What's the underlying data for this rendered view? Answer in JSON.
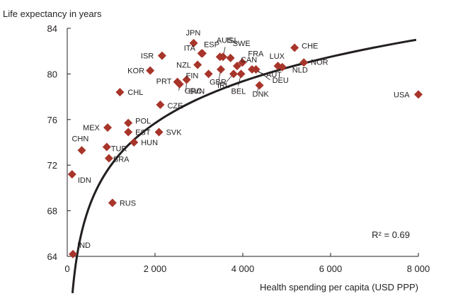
{
  "chart_data": {
    "type": "scatter",
    "title": "",
    "ylabel": "Life expectancy in years",
    "xlabel": "Health spending per capita (USD PPP)",
    "xlim": [
      0,
      8000
    ],
    "ylim": [
      64,
      84
    ],
    "xticks": [
      0,
      2000,
      4000,
      6000,
      8000
    ],
    "xtick_labels": [
      "0",
      "2 000",
      "4 000",
      "6 000",
      "8 000"
    ],
    "yticks": [
      64,
      68,
      72,
      76,
      80,
      84
    ],
    "ytick_labels": [
      "64",
      "68",
      "72",
      "76",
      "80",
      "84"
    ],
    "grid": false,
    "colors": {
      "marker": "#a8352a",
      "trend": "#231f20",
      "axis": "#231f20",
      "leader": "#231f20"
    },
    "annotation": "R² = 0.69",
    "trendline": {
      "type": "logarithmic",
      "a": 35.42,
      "b": 5.297,
      "x_start": 120,
      "x_end": 7950
    },
    "points": [
      {
        "label": "IND",
        "x": 130,
        "y": 64.2
      },
      {
        "label": "IDN",
        "x": 110,
        "y": 71.2
      },
      {
        "label": "CHN",
        "x": 330,
        "y": 73.3
      },
      {
        "label": "MEX",
        "x": 920,
        "y": 75.3
      },
      {
        "label": "TUR",
        "x": 900,
        "y": 73.6
      },
      {
        "label": "BRA",
        "x": 950,
        "y": 72.6
      },
      {
        "label": "RUS",
        "x": 1030,
        "y": 68.7
      },
      {
        "label": "CHL",
        "x": 1200,
        "y": 78.4
      },
      {
        "label": "POL",
        "x": 1390,
        "y": 75.7
      },
      {
        "label": "EST",
        "x": 1390,
        "y": 74.9
      },
      {
        "label": "HUN",
        "x": 1520,
        "y": 74.0
      },
      {
        "label": "SVK",
        "x": 2090,
        "y": 74.9
      },
      {
        "label": "CZE",
        "x": 2120,
        "y": 77.3
      },
      {
        "label": "KOR",
        "x": 1890,
        "y": 80.3
      },
      {
        "label": "ISR",
        "x": 2160,
        "y": 81.6
      },
      {
        "label": "PRT",
        "x": 2510,
        "y": 79.3
      },
      {
        "label": "GRC",
        "x": 2560,
        "y": 79.1
      },
      {
        "label": "SVN",
        "x": 2720,
        "y": 79.5
      },
      {
        "label": "NZL",
        "x": 2970,
        "y": 80.8
      },
      {
        "label": "JPN",
        "x": 2880,
        "y": 82.7
      },
      {
        "label": "ITA",
        "x": 3060,
        "y": 81.8
      },
      {
        "label": "ESP",
        "x": 3080,
        "y": 81.8
      },
      {
        "label": "FIN",
        "x": 3220,
        "y": 80.0
      },
      {
        "label": "AUS",
        "x": 3480,
        "y": 81.5
      },
      {
        "label": "ISL",
        "x": 3550,
        "y": 81.5
      },
      {
        "label": "SWE",
        "x": 3720,
        "y": 81.4
      },
      {
        "label": "CAN",
        "x": 3870,
        "y": 80.7
      },
      {
        "label": "GBR",
        "x": 3790,
        "y": 80.0
      },
      {
        "label": "IRL",
        "x": 3500,
        "y": 80.4
      },
      {
        "label": "BEL",
        "x": 3960,
        "y": 80.0
      },
      {
        "label": "FRA",
        "x": 3990,
        "y": 81.0
      },
      {
        "label": "DNK",
        "x": 4380,
        "y": 79.0
      },
      {
        "label": "AUT",
        "x": 4210,
        "y": 80.4
      },
      {
        "label": "DEU",
        "x": 4300,
        "y": 80.4
      },
      {
        "label": "LUX",
        "x": 4800,
        "y": 80.7
      },
      {
        "label": "NLD",
        "x": 4900,
        "y": 80.6
      },
      {
        "label": "CHE",
        "x": 5180,
        "y": 82.3
      },
      {
        "label": "NOR",
        "x": 5390,
        "y": 81.0
      },
      {
        "label": "USA",
        "x": 8000,
        "y": 78.2
      }
    ]
  }
}
